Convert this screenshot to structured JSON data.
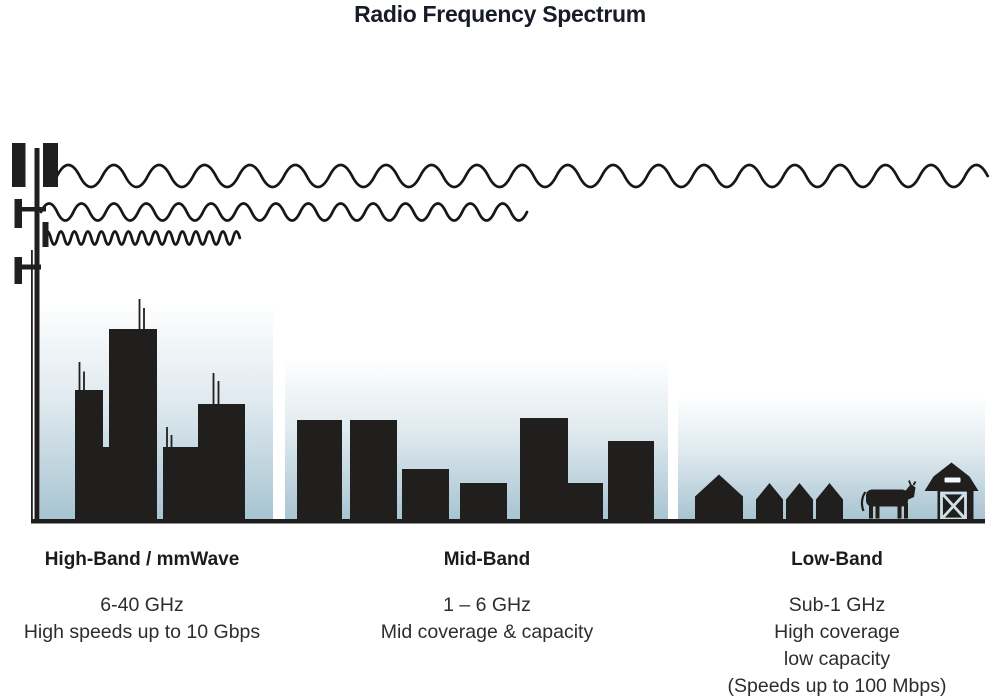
{
  "title": "Radio Frequency Spectrum",
  "bands": [
    {
      "id": "high",
      "heading": "High-Band / mmWave",
      "lines": [
        "6-40 GHz",
        "High speeds up to 10 Gbps"
      ],
      "scene": "dense-city-skyline"
    },
    {
      "id": "mid",
      "heading": "Mid-Band",
      "lines": [
        "1 – 6 GHz",
        "Mid coverage & capacity"
      ],
      "scene": "suburban-buildings"
    },
    {
      "id": "low",
      "heading": "Low-Band",
      "lines": [
        "Sub-1 GHz",
        "High coverage",
        "low capacity",
        "(Speeds up to 100 Mbps)"
      ],
      "scene": "rural-houses-cow-barn"
    }
  ],
  "waves": [
    {
      "name": "long-wavelength-wave",
      "reach": "farthest"
    },
    {
      "name": "medium-wavelength-wave",
      "reach": "medium"
    },
    {
      "name": "short-wavelength-wave",
      "reach": "shortest"
    }
  ],
  "icons": [
    "cell-tower-icon",
    "house-icon",
    "cow-icon",
    "barn-icon"
  ],
  "colors": {
    "ink": "#211e1e",
    "panel_top": "#ffffff",
    "panel_bottom": "#a8c4d2",
    "title_text": "#171c28",
    "body_text": "#2d2d2d",
    "barn_trim": "#cfe0e8"
  }
}
